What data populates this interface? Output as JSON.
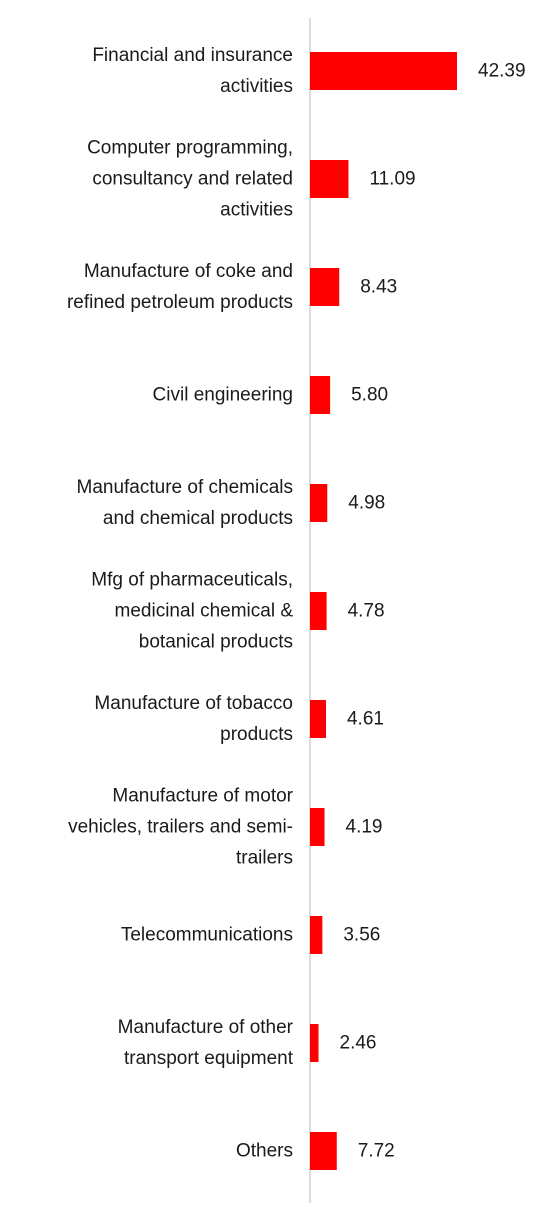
{
  "colors": {
    "bar": "#ff0000",
    "axis": "#d0d0d0",
    "text": "#1a1a1a"
  },
  "chart_data": {
    "type": "bar",
    "orientation": "horizontal",
    "categories": [
      "Financial and insurance activities",
      "Computer programming, consultancy and related activities",
      "Manufacture of coke and refined petroleum products",
      "Civil engineering",
      "Manufacture of chemicals and chemical products",
      "Mfg of pharmaceuticals, medicinal chemical & botanical products",
      "Manufacture of tobacco products",
      "Manufacture of motor vehicles, trailers and semi-trailers",
      "Telecommunications",
      "Manufacture of other transport equipment",
      "Others"
    ],
    "category_lines": [
      [
        "Financial and insurance",
        "activities"
      ],
      [
        "Computer programming,",
        "consultancy and related",
        "activities"
      ],
      [
        "Manufacture of coke and",
        "refined petroleum products"
      ],
      [
        "Civil engineering"
      ],
      [
        "Manufacture of chemicals",
        "and chemical products"
      ],
      [
        "Mfg of pharmaceuticals,",
        "medicinal chemical &",
        "botanical products"
      ],
      [
        "Manufacture of tobacco",
        "products"
      ],
      [
        "Manufacture of motor",
        "vehicles, trailers and semi-",
        "trailers"
      ],
      [
        "Telecommunications"
      ],
      [
        "Manufacture of other",
        "transport equipment"
      ],
      [
        "Others"
      ]
    ],
    "values": [
      42.39,
      11.09,
      8.43,
      5.8,
      4.98,
      4.78,
      4.61,
      4.19,
      3.56,
      2.46,
      7.72
    ],
    "value_labels": [
      "42.39",
      "11.09",
      "8.43",
      "5.80",
      "4.98",
      "4.78",
      "4.61",
      "4.19",
      "3.56",
      "2.46",
      "7.72"
    ],
    "title": "",
    "xlabel": "",
    "ylabel": "",
    "grid": false,
    "legend": "none"
  }
}
